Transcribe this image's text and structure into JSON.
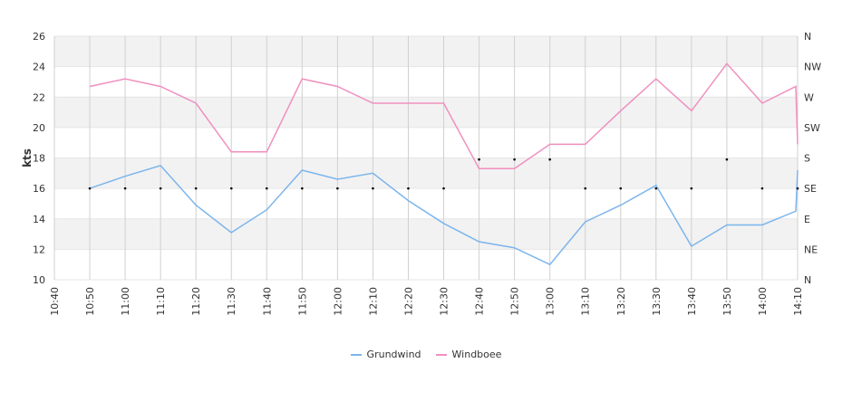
{
  "chart_data": {
    "type": "line",
    "ylabel": "kts",
    "ylim": [
      10,
      26
    ],
    "yticks": [
      10,
      12,
      14,
      16,
      18,
      20,
      22,
      24,
      26
    ],
    "direction_axis": {
      "labels": [
        "N",
        "NE",
        "E",
        "SE",
        "S",
        "SW",
        "W",
        "NW",
        "N"
      ]
    },
    "x_labels": [
      "10:40",
      "10:50",
      "11:00",
      "11:10",
      "11:20",
      "11:30",
      "11:40",
      "11:50",
      "12:00",
      "12:10",
      "12:20",
      "12:30",
      "12:40",
      "12:50",
      "13:00",
      "13:10",
      "13:20",
      "13:30",
      "13:40",
      "13:50",
      "14:00",
      "14:10"
    ],
    "series": [
      {
        "name": "Grundwind",
        "color": "#7cb5ec",
        "points": [
          [
            1,
            16.0
          ],
          [
            2,
            16.8
          ],
          [
            3,
            17.5
          ],
          [
            4,
            14.9
          ],
          [
            5,
            13.1
          ],
          [
            6,
            14.6
          ],
          [
            7,
            17.2
          ],
          [
            8,
            16.6
          ],
          [
            9,
            17.0
          ],
          [
            10,
            15.2
          ],
          [
            11,
            13.7
          ],
          [
            12,
            12.5
          ],
          [
            13,
            12.1
          ],
          [
            14,
            11.0
          ],
          [
            15,
            13.8
          ],
          [
            16,
            14.9
          ],
          [
            17,
            16.2
          ],
          [
            18,
            12.2
          ],
          [
            19,
            13.6
          ],
          [
            20,
            13.6
          ],
          [
            20.95,
            14.5
          ],
          [
            21,
            17.2
          ]
        ]
      },
      {
        "name": "Windboee",
        "color": "#f08fbf",
        "points": [
          [
            1,
            22.7
          ],
          [
            2,
            23.2
          ],
          [
            3,
            22.7
          ],
          [
            4,
            21.6
          ],
          [
            5,
            18.4
          ],
          [
            6,
            18.4
          ],
          [
            7,
            23.2
          ],
          [
            8,
            22.7
          ],
          [
            9,
            21.6
          ],
          [
            10,
            21.6
          ],
          [
            11,
            21.6
          ],
          [
            12,
            17.3
          ],
          [
            13,
            17.3
          ],
          [
            14,
            18.9
          ],
          [
            15,
            18.9
          ],
          [
            16,
            21.1
          ],
          [
            17,
            23.2
          ],
          [
            18,
            21.1
          ],
          [
            19,
            24.2
          ],
          [
            20,
            21.6
          ],
          [
            20.95,
            22.7
          ],
          [
            21,
            18.9
          ]
        ]
      }
    ],
    "direction_marks": [
      [
        1,
        16.0
      ],
      [
        2,
        16.0
      ],
      [
        3,
        16.0
      ],
      [
        4,
        16.0
      ],
      [
        5,
        16.0
      ],
      [
        6,
        16.0
      ],
      [
        7,
        16.0
      ],
      [
        8,
        16.0
      ],
      [
        9,
        16.0
      ],
      [
        10,
        16.0
      ],
      [
        11,
        16.0
      ],
      [
        12,
        17.9
      ],
      [
        13,
        17.9
      ],
      [
        14,
        17.9
      ],
      [
        15,
        16.0
      ],
      [
        16,
        16.0
      ],
      [
        17,
        16.0
      ],
      [
        18,
        16.0
      ],
      [
        19,
        17.9
      ],
      [
        20,
        16.0
      ],
      [
        21,
        16.0
      ]
    ]
  }
}
